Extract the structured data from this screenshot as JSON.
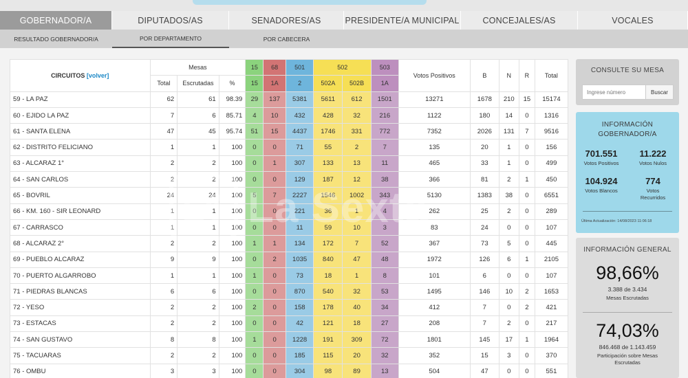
{
  "tabs": [
    "GOBERNADOR/A",
    "DIPUTADOS/AS",
    "SENADORES/AS",
    "PRESIDENTE/A MUNICIPAL",
    "CONCEJALES/AS",
    "VOCALES"
  ],
  "subtabs": [
    "RESULTADO GOBERNADOR/A",
    "POR DEPARTAMENTO",
    "POR CABECERA"
  ],
  "table": {
    "circuitos_label": "CIRCUITOS",
    "volver_label": "[volver]",
    "mesas_label": "Mesas",
    "mesas_sub": [
      "Total",
      "Escrutadas",
      "%"
    ],
    "parties": [
      "15",
      "68",
      "501",
      "502",
      "503"
    ],
    "lists": [
      "15",
      "1A",
      "2",
      "502A",
      "502B",
      "1A"
    ],
    "votos_positivos_label": "Votos Positivos",
    "extra_cols": [
      "B",
      "N",
      "R",
      "Total"
    ],
    "rows": [
      [
        "59 - LA PAZ",
        "62",
        "61",
        "98.39",
        "29",
        "137",
        "5381",
        "5611",
        "612",
        "1501",
        "13271",
        "1678",
        "210",
        "15",
        "15174"
      ],
      [
        "60 - EJIDO LA PAZ",
        "7",
        "6",
        "85.71",
        "4",
        "10",
        "432",
        "428",
        "32",
        "216",
        "1122",
        "180",
        "14",
        "0",
        "1316"
      ],
      [
        "61 - SANTA ELENA",
        "47",
        "45",
        "95.74",
        "51",
        "15",
        "4437",
        "1746",
        "331",
        "772",
        "7352",
        "2026",
        "131",
        "7",
        "9516"
      ],
      [
        "62 - DISTRITO FELICIANO",
        "1",
        "1",
        "100",
        "0",
        "0",
        "71",
        "55",
        "2",
        "7",
        "135",
        "20",
        "1",
        "0",
        "156"
      ],
      [
        "63 - ALCARAZ 1°",
        "2",
        "2",
        "100",
        "0",
        "1",
        "307",
        "133",
        "13",
        "11",
        "465",
        "33",
        "1",
        "0",
        "499"
      ],
      [
        "64 - SAN CARLOS",
        "2",
        "2",
        "100",
        "0",
        "0",
        "129",
        "187",
        "12",
        "38",
        "366",
        "81",
        "2",
        "1",
        "450"
      ],
      [
        "65 - BOVRIL",
        "24",
        "24",
        "100",
        "5",
        "7",
        "2227",
        "1546",
        "1002",
        "343",
        "5130",
        "1383",
        "38",
        "0",
        "6551"
      ],
      [
        "66 - KM. 160 - SIR LEONARD",
        "1",
        "1",
        "100",
        "0",
        "0",
        "221",
        "36",
        "1",
        "4",
        "262",
        "25",
        "2",
        "0",
        "289"
      ],
      [
        "67 - CARRASCO",
        "1",
        "1",
        "100",
        "0",
        "0",
        "11",
        "59",
        "10",
        "3",
        "83",
        "24",
        "0",
        "0",
        "107"
      ],
      [
        "68 - ALCARAZ 2°",
        "2",
        "2",
        "100",
        "1",
        "1",
        "134",
        "172",
        "7",
        "52",
        "367",
        "73",
        "5",
        "0",
        "445"
      ],
      [
        "69 - PUEBLO ALCARAZ",
        "9",
        "9",
        "100",
        "0",
        "2",
        "1035",
        "840",
        "47",
        "48",
        "1972",
        "126",
        "6",
        "1",
        "2105"
      ],
      [
        "70 - PUERTO ALGARROBO",
        "1",
        "1",
        "100",
        "1",
        "0",
        "73",
        "18",
        "1",
        "8",
        "101",
        "6",
        "0",
        "0",
        "107"
      ],
      [
        "71 - PIEDRAS BLANCAS",
        "6",
        "6",
        "100",
        "0",
        "0",
        "870",
        "540",
        "32",
        "53",
        "1495",
        "146",
        "10",
        "2",
        "1653"
      ],
      [
        "72 - YESO",
        "2",
        "2",
        "100",
        "2",
        "0",
        "158",
        "178",
        "40",
        "34",
        "412",
        "7",
        "0",
        "2",
        "421"
      ],
      [
        "73 - ESTACAS",
        "2",
        "2",
        "100",
        "0",
        "0",
        "42",
        "121",
        "18",
        "27",
        "208",
        "7",
        "2",
        "0",
        "217"
      ],
      [
        "74 - SAN GUSTAVO",
        "8",
        "8",
        "100",
        "1",
        "0",
        "1228",
        "191",
        "309",
        "72",
        "1801",
        "145",
        "17",
        "1",
        "1964"
      ],
      [
        "75 - TACUARAS",
        "2",
        "2",
        "100",
        "0",
        "0",
        "185",
        "115",
        "20",
        "32",
        "352",
        "15",
        "3",
        "0",
        "370"
      ],
      [
        "76 - OMBU",
        "3",
        "3",
        "100",
        "0",
        "0",
        "304",
        "98",
        "89",
        "13",
        "504",
        "47",
        "0",
        "0",
        "551"
      ]
    ]
  },
  "consulte": {
    "title": "CONSULTE SU MESA",
    "placeholder": "Ingrese número",
    "button": "Buscar"
  },
  "info_gob": {
    "title": "INFORMACIÓN GOBERNADOR/A",
    "stats": [
      {
        "value": "701.551",
        "label": "Votos Positivos"
      },
      {
        "value": "11.222",
        "label": "Votos Nulos"
      },
      {
        "value": "104.924",
        "label": "Votos Blancos"
      },
      {
        "value": "774",
        "label": "Votos Recurridos"
      }
    ],
    "update": "Última Actualización: 14/08/2023 11:06:18"
  },
  "info_general": {
    "title": "INFORMACIÓN GENERAL",
    "mesas_pct": "98,66%",
    "mesas_sub": "3.388 de 3.434",
    "mesas_label": "Mesas Escrutadas",
    "part_pct": "74,03%",
    "part_sub": "846.468 de 1.143.459",
    "part_label": "Participación sobre Mesas Escrutadas"
  },
  "watermark": {
    "badge": "L6",
    "text": "La Sexta"
  },
  "colors": {
    "p15": "#8bd37d",
    "p68": "#d27474",
    "p501": "#6eb5dc",
    "p502": "#f6df55",
    "p503": "#bd8fbe",
    "info_bg": "#9ed8ea"
  }
}
